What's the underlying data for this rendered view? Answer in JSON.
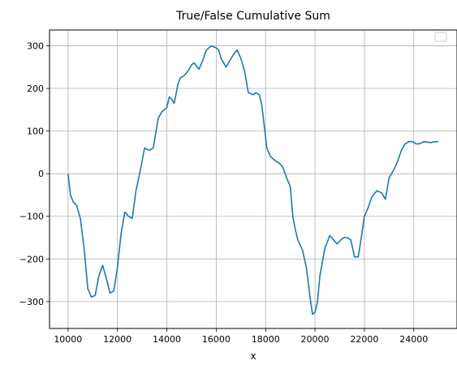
{
  "chart_data": {
    "type": "line",
    "title": "True/False Cumulative Sum",
    "xlabel": "x",
    "ylabel": "",
    "xlim": [
      9250,
      25750
    ],
    "ylim": [
      -363,
      337
    ],
    "xticks": [
      10000,
      12000,
      14000,
      16000,
      18000,
      20000,
      22000,
      24000
    ],
    "yticks": [
      -300,
      -200,
      -100,
      0,
      100,
      200,
      300
    ],
    "grid": true,
    "legend": "upper-right",
    "line_color": "#1f77b4",
    "series": [
      {
        "x": [
          10000,
          10100,
          10200,
          10350,
          10500,
          10650,
          10800,
          10950,
          11100,
          11250,
          11400,
          11550,
          11700,
          11850,
          12000,
          12150,
          12300,
          12450,
          12600,
          12750,
          12900,
          13100,
          13300,
          13450,
          13650,
          13800,
          14000,
          14100,
          14200,
          14300,
          14450,
          14550,
          14700,
          14850,
          15000,
          15100,
          15300,
          15450,
          15600,
          15800,
          16000,
          16100,
          16200,
          16400,
          16550,
          16700,
          16850,
          17000,
          17150,
          17300,
          17500,
          17600,
          17750,
          17850,
          17950,
          18050,
          18200,
          18400,
          18550,
          18700,
          18850,
          19000,
          19100,
          19200,
          19300,
          19500,
          19650,
          19800,
          19900,
          20000,
          20100,
          20200,
          20400,
          20600,
          20750,
          20900,
          21050,
          21150,
          21300,
          21450,
          21600,
          21750,
          21850,
          22000,
          22150,
          22300,
          22500,
          22700,
          22850,
          23000,
          23100,
          23200,
          23350,
          23500,
          23650,
          23800,
          23950,
          24100,
          24200,
          24300,
          24400,
          24550,
          24700,
          24850,
          25000
        ],
        "y": [
          0,
          -50,
          -65,
          -75,
          -105,
          -175,
          -270,
          -290,
          -285,
          -240,
          -215,
          -245,
          -280,
          -275,
          -220,
          -140,
          -90,
          -100,
          -105,
          -40,
          0,
          60,
          55,
          60,
          130,
          145,
          155,
          180,
          175,
          165,
          210,
          225,
          230,
          240,
          255,
          260,
          245,
          265,
          290,
          300,
          295,
          290,
          270,
          250,
          265,
          280,
          290,
          270,
          240,
          190,
          185,
          190,
          185,
          160,
          110,
          60,
          40,
          30,
          25,
          15,
          -10,
          -30,
          -100,
          -130,
          -155,
          -180,
          -220,
          -290,
          -330,
          -325,
          -300,
          -240,
          -175,
          -145,
          -155,
          -165,
          -155,
          -150,
          -150,
          -155,
          -195,
          -195,
          -160,
          -100,
          -80,
          -55,
          -40,
          -45,
          -60,
          -10,
          0,
          10,
          30,
          55,
          70,
          75,
          75,
          70,
          70,
          72,
          75,
          74,
          73,
          75,
          75
        ]
      }
    ]
  }
}
